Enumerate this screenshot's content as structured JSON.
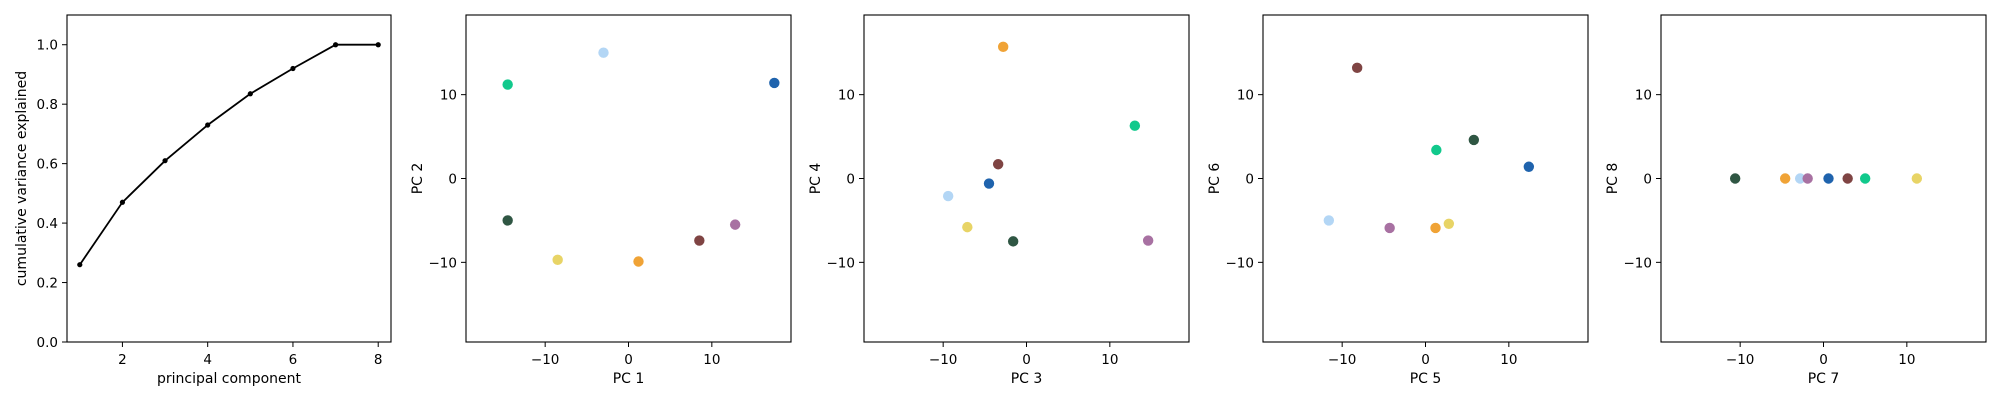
{
  "chart_data": [
    {
      "type": "line",
      "xlabel": "principal component",
      "ylabel": "cumulative variance explained",
      "xlim": [
        0.7,
        8.3
      ],
      "ylim": [
        0.0,
        1.1
      ],
      "xticks": [
        2,
        4,
        6,
        8
      ],
      "yticks": [
        0.0,
        0.2,
        0.4,
        0.6,
        0.8,
        1.0
      ],
      "grid": false,
      "color": "#000000",
      "x": [
        1,
        2,
        3,
        4,
        5,
        6,
        7,
        8
      ],
      "y": [
        0.26,
        0.47,
        0.61,
        0.73,
        0.835,
        0.92,
        1.0,
        1.0
      ]
    },
    {
      "type": "scatter",
      "xlabel": "PC 1",
      "ylabel": "PC 2",
      "xlim": [
        -19.5,
        19.5
      ],
      "ylim": [
        -19.5,
        19.5
      ],
      "xticks": [
        -10,
        0,
        10
      ],
      "yticks": [
        -10,
        0,
        10
      ],
      "grid": false,
      "points": [
        {
          "x": -14.5,
          "y": 11.2,
          "color": "#11c98c"
        },
        {
          "x": -3.0,
          "y": 15.0,
          "color": "#b3d6f5"
        },
        {
          "x": 17.5,
          "y": 11.4,
          "color": "#1f63ad"
        },
        {
          "x": -14.5,
          "y": -5.0,
          "color": "#2f5643"
        },
        {
          "x": -8.5,
          "y": -9.7,
          "color": "#e8d466"
        },
        {
          "x": 1.2,
          "y": -9.9,
          "color": "#f0a336"
        },
        {
          "x": 8.5,
          "y": -7.4,
          "color": "#7f4443"
        },
        {
          "x": 12.8,
          "y": -5.5,
          "color": "#a871a2"
        }
      ]
    },
    {
      "type": "scatter",
      "xlabel": "PC 3",
      "ylabel": "PC 4",
      "xlim": [
        -19.5,
        19.5
      ],
      "ylim": [
        -19.5,
        19.5
      ],
      "xticks": [
        -10,
        0,
        10
      ],
      "yticks": [
        -10,
        0,
        10
      ],
      "grid": false,
      "points": [
        {
          "x": -2.8,
          "y": 15.7,
          "color": "#f0a336"
        },
        {
          "x": 13.0,
          "y": 6.3,
          "color": "#11c98c"
        },
        {
          "x": -3.4,
          "y": 1.7,
          "color": "#7f4443"
        },
        {
          "x": -4.5,
          "y": -0.6,
          "color": "#1f63ad"
        },
        {
          "x": -9.4,
          "y": -2.1,
          "color": "#b3d6f5"
        },
        {
          "x": -7.1,
          "y": -5.8,
          "color": "#e8d466"
        },
        {
          "x": -1.6,
          "y": -7.5,
          "color": "#2f5643"
        },
        {
          "x": 14.6,
          "y": -7.4,
          "color": "#a871a2"
        }
      ]
    },
    {
      "type": "scatter",
      "xlabel": "PC 5",
      "ylabel": "PC 6",
      "xlim": [
        -19.5,
        19.5
      ],
      "ylim": [
        -19.5,
        19.5
      ],
      "xticks": [
        -10,
        0,
        10
      ],
      "yticks": [
        -10,
        0,
        10
      ],
      "grid": false,
      "points": [
        {
          "x": -8.2,
          "y": 13.2,
          "color": "#7f4443"
        },
        {
          "x": 5.8,
          "y": 4.6,
          "color": "#2f5643"
        },
        {
          "x": 1.3,
          "y": 3.4,
          "color": "#11c98c"
        },
        {
          "x": 12.4,
          "y": 1.4,
          "color": "#1f63ad"
        },
        {
          "x": -11.6,
          "y": -5.0,
          "color": "#b3d6f5"
        },
        {
          "x": -4.3,
          "y": -5.9,
          "color": "#a871a2"
        },
        {
          "x": 1.2,
          "y": -5.9,
          "color": "#f0a336"
        },
        {
          "x": 2.8,
          "y": -5.4,
          "color": "#e8d466"
        }
      ]
    },
    {
      "type": "scatter",
      "xlabel": "PC 7",
      "ylabel": "PC 8",
      "xlim": [
        -19.5,
        19.5
      ],
      "ylim": [
        -19.5,
        19.5
      ],
      "xticks": [
        -10,
        0,
        10
      ],
      "yticks": [
        -10,
        0,
        10
      ],
      "grid": false,
      "points": [
        {
          "x": -10.6,
          "y": 0.0,
          "color": "#2f5643"
        },
        {
          "x": -4.6,
          "y": 0.0,
          "color": "#f0a336"
        },
        {
          "x": -2.8,
          "y": 0.0,
          "color": "#b3d6f5"
        },
        {
          "x": -1.9,
          "y": 0.0,
          "color": "#a871a2"
        },
        {
          "x": 0.6,
          "y": 0.0,
          "color": "#1f63ad"
        },
        {
          "x": 2.9,
          "y": 0.0,
          "color": "#7f4443"
        },
        {
          "x": 5.0,
          "y": 0.0,
          "color": "#11c98c"
        },
        {
          "x": 11.2,
          "y": 0.0,
          "color": "#e8d466"
        }
      ]
    }
  ]
}
